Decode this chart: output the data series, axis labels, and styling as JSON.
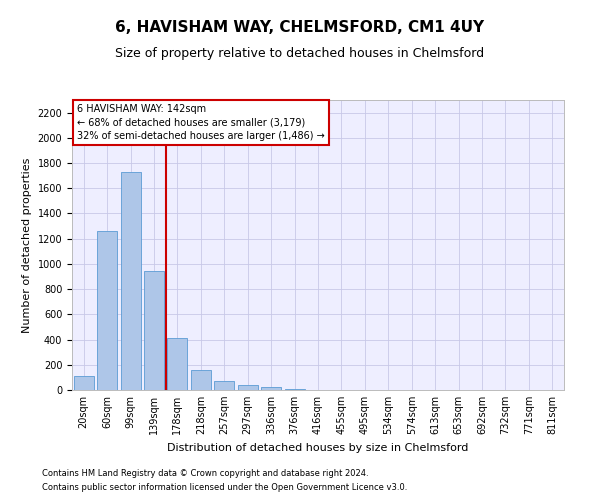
{
  "title": "6, HAVISHAM WAY, CHELMSFORD, CM1 4UY",
  "subtitle": "Size of property relative to detached houses in Chelmsford",
  "xlabel": "Distribution of detached houses by size in Chelmsford",
  "ylabel": "Number of detached properties",
  "footer1": "Contains HM Land Registry data © Crown copyright and database right 2024.",
  "footer2": "Contains public sector information licensed under the Open Government Licence v3.0.",
  "categories": [
    "20sqm",
    "60sqm",
    "99sqm",
    "139sqm",
    "178sqm",
    "218sqm",
    "257sqm",
    "297sqm",
    "336sqm",
    "376sqm",
    "416sqm",
    "455sqm",
    "495sqm",
    "534sqm",
    "574sqm",
    "613sqm",
    "653sqm",
    "692sqm",
    "732sqm",
    "771sqm",
    "811sqm"
  ],
  "values": [
    110,
    1260,
    1730,
    940,
    415,
    155,
    70,
    40,
    20,
    5,
    2,
    0,
    0,
    0,
    0,
    0,
    0,
    0,
    0,
    0,
    0
  ],
  "bar_color": "#aec6e8",
  "bar_edge_color": "#5b9bd5",
  "red_line_color": "#cc0000",
  "annotation_line1": "6 HAVISHAM WAY: 142sqm",
  "annotation_line2": "← 68% of detached houses are smaller (3,179)",
  "annotation_line3": "32% of semi-detached houses are larger (1,486) →",
  "annotation_box_color": "#ffffff",
  "annotation_box_edge": "#cc0000",
  "ylim": [
    0,
    2300
  ],
  "yticks": [
    0,
    200,
    400,
    600,
    800,
    1000,
    1200,
    1400,
    1600,
    1800,
    2000,
    2200
  ],
  "grid_color": "#c8c8e8",
  "bg_color": "#eeeeff",
  "title_fontsize": 11,
  "subtitle_fontsize": 9,
  "tick_fontsize": 7,
  "ylabel_fontsize": 8,
  "xlabel_fontsize": 8,
  "footer_fontsize": 6
}
